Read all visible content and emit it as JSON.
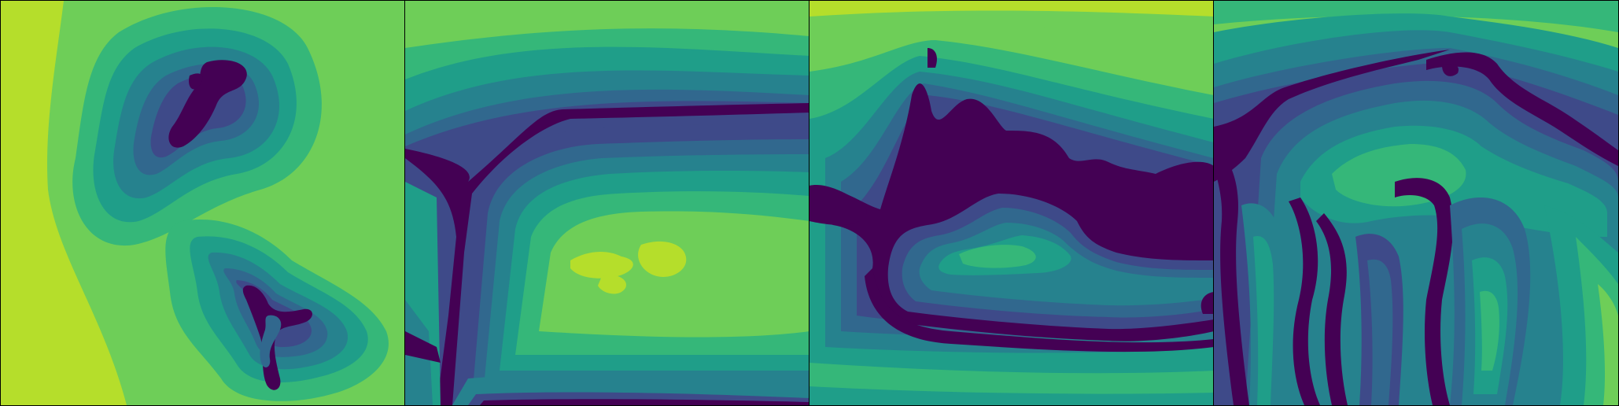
{
  "colors": {
    "level0": "#440154",
    "level1": "#3e4a89",
    "level2": "#31688e",
    "level3": "#26828e",
    "level4": "#1f9e89",
    "level5": "#35b779",
    "level6": "#6ece58",
    "level7": "#b5de2b"
  },
  "panels": [
    {
      "icon": "distance-field-two-islands"
    },
    {
      "icon": "distance-field-t-junction-ring"
    },
    {
      "icon": "distance-field-boat-contour"
    },
    {
      "icon": "distance-field-arch-network"
    }
  ]
}
